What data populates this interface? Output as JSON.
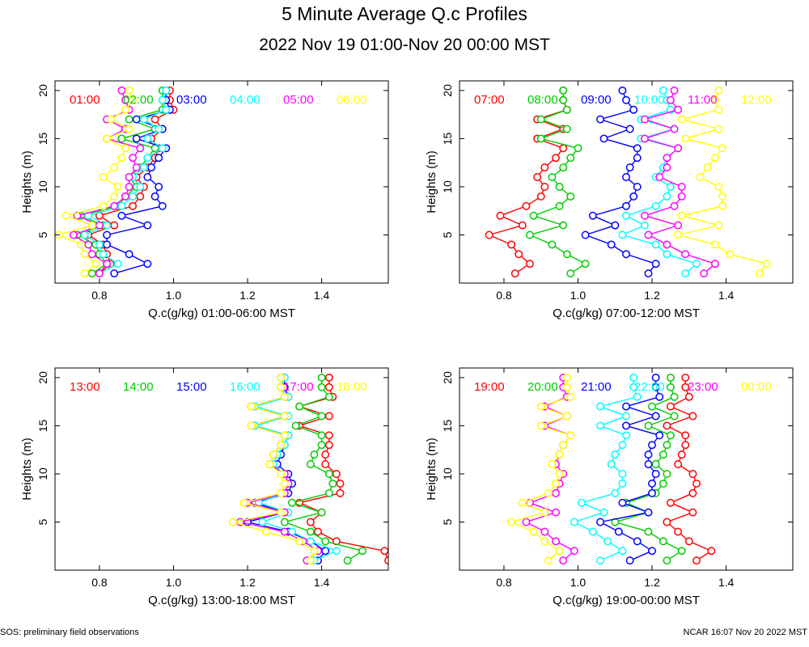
{
  "title": "5 Minute Average Q.c Profiles",
  "subtitle": "2022 Nov 19 01:00-Nov 20 00:00 MST",
  "footer_left": "SOS: preliminary field observations",
  "footer_right": "NCAR 16:07 Nov 20 2022 MST",
  "chart_data": [
    {
      "type": "line",
      "xlabel": "Q.c(g/kg) 01:00-06:00 MST",
      "ylabel": "Heights (m)",
      "xlim": [
        0.68,
        1.58
      ],
      "ylim": [
        0,
        21
      ],
      "xticks": [
        "0.8",
        "1.0",
        "1.2",
        "1.4"
      ],
      "yticks": [
        "5",
        "10",
        "15",
        "20"
      ],
      "heights": [
        1,
        2,
        3,
        4,
        5,
        6,
        7,
        8,
        9,
        10,
        11,
        12,
        13,
        14,
        15,
        16,
        17,
        18,
        19,
        20
      ],
      "series": [
        {
          "name": "01:00",
          "color": "#ff0000",
          "values": [
            0.8,
            0.83,
            0.82,
            0.81,
            0.77,
            0.84,
            0.8,
            0.89,
            0.91,
            0.92,
            0.9,
            0.93,
            0.95,
            0.96,
            0.94,
            0.97,
            0.95,
            1.0,
            0.99,
            0.99
          ]
        },
        {
          "name": "02:00",
          "color": "#00cc00",
          "values": [
            0.78,
            0.82,
            0.8,
            0.79,
            0.74,
            0.81,
            0.75,
            0.85,
            0.87,
            0.9,
            0.88,
            0.91,
            0.93,
            0.95,
            0.86,
            0.95,
            0.88,
            0.97,
            0.97,
            0.97
          ]
        },
        {
          "name": "03:00",
          "color": "#0000ff",
          "values": [
            0.84,
            0.93,
            0.88,
            0.82,
            0.82,
            0.93,
            0.86,
            0.97,
            0.95,
            0.96,
            0.93,
            0.94,
            0.96,
            0.98,
            0.9,
            0.97,
            0.9,
            0.99,
            0.98,
            0.98
          ]
        },
        {
          "name": "04:00",
          "color": "#00ffff",
          "values": [
            0.8,
            0.85,
            0.81,
            0.8,
            0.76,
            0.82,
            0.77,
            0.86,
            0.89,
            0.91,
            0.89,
            0.92,
            0.93,
            0.97,
            0.93,
            0.96,
            0.92,
            0.98,
            0.97,
            0.98
          ]
        },
        {
          "name": "05:00",
          "color": "#ff00ff",
          "values": [
            0.8,
            0.82,
            0.78,
            0.77,
            0.73,
            0.8,
            0.74,
            0.84,
            0.87,
            0.88,
            0.88,
            0.9,
            0.89,
            0.91,
            0.82,
            0.87,
            0.82,
            0.88,
            0.87,
            0.86
          ]
        },
        {
          "name": "06:00",
          "color": "#ffff00",
          "values": [
            0.76,
            0.79,
            0.76,
            0.75,
            0.69,
            0.78,
            0.71,
            0.81,
            0.84,
            0.85,
            0.81,
            0.84,
            0.86,
            0.87,
            0.82,
            0.88,
            0.83,
            0.87,
            0.89,
            0.88
          ]
        }
      ]
    },
    {
      "type": "line",
      "xlabel": "Q.c(g/kg) 07:00-12:00 MST",
      "ylabel": "Heights (m)",
      "xlim": [
        0.68,
        1.58
      ],
      "ylim": [
        0,
        21
      ],
      "xticks": [
        "0.8",
        "1.0",
        "1.2",
        "1.4"
      ],
      "yticks": [
        "5",
        "10",
        "15",
        "20"
      ],
      "heights": [
        1,
        2,
        3,
        4,
        5,
        6,
        7,
        8,
        9,
        10,
        11,
        12,
        13,
        14,
        15,
        16,
        17,
        18,
        19,
        20
      ],
      "series": [
        {
          "name": "07:00",
          "color": "#ff0000",
          "values": [
            0.83,
            0.87,
            0.84,
            0.82,
            0.76,
            0.85,
            0.79,
            0.86,
            0.9,
            0.91,
            0.89,
            0.91,
            0.94,
            0.96,
            0.89,
            0.96,
            0.89,
            0.97,
            0.96,
            0.96
          ]
        },
        {
          "name": "08:00",
          "color": "#00cc00",
          "values": [
            0.98,
            1.02,
            0.97,
            0.93,
            0.87,
            0.96,
            0.88,
            0.95,
            0.98,
            0.95,
            0.93,
            0.96,
            0.98,
            1.0,
            0.9,
            0.97,
            0.9,
            0.97,
            0.96,
            0.96
          ]
        },
        {
          "name": "09:00",
          "color": "#0000ff",
          "values": [
            1.19,
            1.21,
            1.13,
            1.09,
            1.02,
            1.1,
            1.04,
            1.13,
            1.15,
            1.16,
            1.13,
            1.14,
            1.16,
            1.16,
            1.07,
            1.14,
            1.06,
            1.15,
            1.13,
            1.12
          ]
        },
        {
          "name": "10:00",
          "color": "#00ffff",
          "values": [
            1.29,
            1.32,
            1.24,
            1.21,
            1.12,
            1.18,
            1.13,
            1.21,
            1.24,
            1.25,
            1.21,
            1.23,
            1.24,
            1.27,
            1.17,
            1.26,
            1.17,
            1.25,
            1.24,
            1.23
          ]
        },
        {
          "name": "11:00",
          "color": "#ff00ff",
          "values": [
            1.34,
            1.37,
            1.29,
            1.24,
            1.19,
            1.27,
            1.18,
            1.26,
            1.28,
            1.28,
            1.22,
            1.24,
            1.24,
            1.27,
            1.18,
            1.26,
            1.18,
            1.27,
            1.25,
            1.26
          ]
        },
        {
          "name": "12:00",
          "color": "#ffff00",
          "values": [
            1.49,
            1.51,
            1.41,
            1.37,
            1.27,
            1.38,
            1.28,
            1.39,
            1.39,
            1.38,
            1.33,
            1.35,
            1.37,
            1.39,
            1.29,
            1.38,
            1.28,
            1.38,
            1.37,
            1.38
          ]
        }
      ]
    },
    {
      "type": "line",
      "xlabel": "Q.c(g/kg) 13:00-18:00 MST",
      "ylabel": "Heights (m)",
      "xlim": [
        0.68,
        1.58
      ],
      "ylim": [
        0,
        21
      ],
      "xticks": [
        "0.8",
        "1.0",
        "1.2",
        "1.4"
      ],
      "yticks": [
        "5",
        "10",
        "15",
        "20"
      ],
      "heights": [
        1,
        2,
        3,
        4,
        5,
        6,
        7,
        8,
        9,
        10,
        11,
        12,
        13,
        14,
        15,
        16,
        17,
        18,
        19,
        20
      ],
      "series": [
        {
          "name": "13:00",
          "color": "#ff0000",
          "values": [
            1.58,
            1.57,
            1.44,
            1.39,
            1.37,
            1.4,
            1.34,
            1.45,
            1.45,
            1.44,
            1.41,
            1.41,
            1.42,
            1.42,
            1.34,
            1.42,
            1.34,
            1.43,
            1.42,
            1.42
          ]
        },
        {
          "name": "14:00",
          "color": "#00cc00",
          "values": [
            1.47,
            1.51,
            1.41,
            1.37,
            1.3,
            1.4,
            1.32,
            1.42,
            1.43,
            1.42,
            1.37,
            1.38,
            1.4,
            1.4,
            1.33,
            1.4,
            1.34,
            1.42,
            1.4,
            1.4
          ]
        },
        {
          "name": "15:00",
          "color": "#0000ff",
          "values": [
            1.39,
            1.41,
            1.37,
            1.31,
            1.2,
            1.3,
            1.22,
            1.31,
            1.32,
            1.31,
            1.28,
            1.29,
            1.3,
            1.31,
            1.22,
            1.3,
            1.21,
            1.31,
            1.3,
            1.3
          ]
        },
        {
          "name": "16:00",
          "color": "#00ffff",
          "values": [
            1.38,
            1.44,
            1.37,
            1.32,
            1.24,
            1.31,
            1.23,
            1.3,
            1.31,
            1.3,
            1.27,
            1.28,
            1.3,
            1.31,
            1.22,
            1.31,
            1.22,
            1.31,
            1.29,
            1.3
          ]
        },
        {
          "name": "17:00",
          "color": "#ff00ff",
          "values": [
            1.36,
            1.39,
            1.35,
            1.3,
            1.18,
            1.3,
            1.2,
            1.3,
            1.31,
            1.3,
            1.26,
            1.27,
            1.29,
            1.3,
            1.21,
            1.3,
            1.21,
            1.3,
            1.29,
            1.29
          ]
        },
        {
          "name": "18:00",
          "color": "#ffff00",
          "values": [
            1.37,
            1.38,
            1.34,
            1.25,
            1.16,
            1.29,
            1.19,
            1.29,
            1.3,
            1.29,
            1.26,
            1.27,
            1.29,
            1.3,
            1.21,
            1.3,
            1.21,
            1.3,
            1.29,
            1.29
          ]
        }
      ]
    },
    {
      "type": "line",
      "xlabel": "Q.c(g/kg) 19:00-00:00 MST",
      "ylabel": "Heights (m)",
      "xlim": [
        0.68,
        1.58
      ],
      "ylim": [
        0,
        21
      ],
      "xticks": [
        "0.8",
        "1.0",
        "1.2",
        "1.4"
      ],
      "yticks": [
        "5",
        "10",
        "15",
        "20"
      ],
      "heights": [
        1,
        2,
        3,
        4,
        5,
        6,
        7,
        8,
        9,
        10,
        11,
        12,
        13,
        14,
        15,
        16,
        17,
        18,
        19,
        20
      ],
      "series": [
        {
          "name": "19:00",
          "color": "#ff0000",
          "values": [
            1.32,
            1.36,
            1.3,
            1.27,
            1.24,
            1.31,
            1.25,
            1.31,
            1.32,
            1.31,
            1.27,
            1.28,
            1.29,
            1.29,
            1.24,
            1.31,
            1.25,
            1.3,
            1.29,
            1.29
          ]
        },
        {
          "name": "20:00",
          "color": "#00cc00",
          "values": [
            1.24,
            1.28,
            1.23,
            1.19,
            1.1,
            1.19,
            1.13,
            1.21,
            1.23,
            1.24,
            1.21,
            1.23,
            1.24,
            1.25,
            1.19,
            1.26,
            1.2,
            1.26,
            1.25,
            1.25
          ]
        },
        {
          "name": "21:00",
          "color": "#0000ff",
          "values": [
            1.14,
            1.2,
            1.16,
            1.11,
            1.06,
            1.19,
            1.12,
            1.2,
            1.2,
            1.21,
            1.19,
            1.19,
            1.2,
            1.22,
            1.13,
            1.21,
            1.13,
            1.22,
            1.21,
            1.21
          ]
        },
        {
          "name": "22:00",
          "color": "#00ffff",
          "values": [
            1.06,
            1.12,
            1.08,
            1.04,
            0.99,
            1.07,
            1.01,
            1.1,
            1.12,
            1.12,
            1.09,
            1.1,
            1.12,
            1.13,
            1.06,
            1.13,
            1.06,
            1.16,
            1.15,
            1.15
          ]
        },
        {
          "name": "23:00",
          "color": "#ff00ff",
          "values": [
            0.96,
            0.99,
            0.94,
            0.91,
            0.86,
            0.94,
            0.87,
            0.94,
            0.95,
            0.96,
            0.94,
            0.95,
            0.96,
            0.98,
            0.91,
            0.97,
            0.91,
            0.97,
            0.96,
            0.96
          ]
        },
        {
          "name": "00:00",
          "color": "#ffff00",
          "values": [
            0.92,
            0.95,
            0.91,
            0.88,
            0.82,
            0.91,
            0.85,
            0.92,
            0.94,
            0.95,
            0.93,
            0.95,
            0.96,
            0.98,
            0.9,
            0.97,
            0.9,
            0.98,
            0.97,
            0.97
          ]
        }
      ]
    }
  ]
}
